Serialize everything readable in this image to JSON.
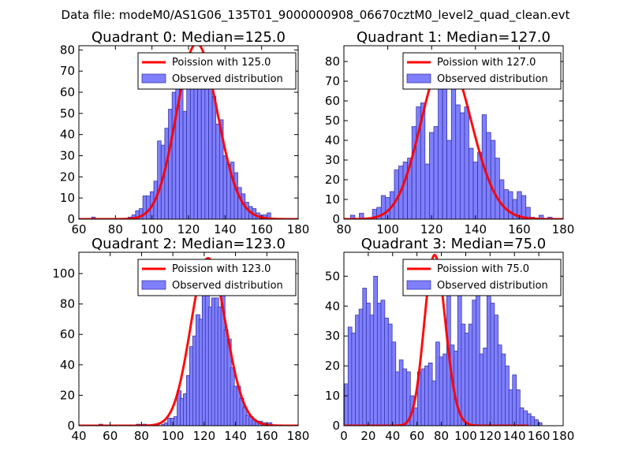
{
  "figure": {
    "suptitle": "Data file: modeM0/AS1G06_135T01_9000000908_06670cztM0_level2_quad_clean.evt"
  },
  "colors": {
    "bar_fill": "#7f7fff",
    "bar_edge": "#2b2b99",
    "poisson_line": "#ff0000"
  },
  "chart_data": [
    {
      "type": "bar",
      "title": "Quadrant 0: Median=125.0",
      "legend": {
        "line_label": "Poission with 125.0",
        "bar_label": "Observed distribution",
        "placement": "top-right"
      },
      "xlim": [
        60,
        180
      ],
      "ylim": [
        0,
        82
      ],
      "xticks": [
        60,
        80,
        100,
        120,
        140,
        160,
        180
      ],
      "yticks": [
        0,
        10,
        20,
        30,
        40,
        50,
        60,
        70,
        80
      ],
      "poisson_mean": 125.0,
      "poisson_peak": 83,
      "bin_width": 2,
      "bins": [
        [
          68,
          1
        ],
        [
          72,
          0
        ],
        [
          76,
          0
        ],
        [
          80,
          0
        ],
        [
          84,
          0
        ],
        [
          88,
          1
        ],
        [
          90,
          2
        ],
        [
          92,
          4
        ],
        [
          94,
          5
        ],
        [
          96,
          11
        ],
        [
          98,
          11
        ],
        [
          100,
          13
        ],
        [
          102,
          18
        ],
        [
          104,
          37
        ],
        [
          106,
          35
        ],
        [
          108,
          43
        ],
        [
          110,
          52
        ],
        [
          112,
          60
        ],
        [
          114,
          65
        ],
        [
          116,
          70
        ],
        [
          118,
          51
        ],
        [
          120,
          63
        ],
        [
          122,
          77
        ],
        [
          124,
          77
        ],
        [
          126,
          66
        ],
        [
          128,
          69
        ],
        [
          130,
          64
        ],
        [
          132,
          69
        ],
        [
          134,
          58
        ],
        [
          136,
          45
        ],
        [
          138,
          47
        ],
        [
          140,
          30
        ],
        [
          142,
          26
        ],
        [
          144,
          27
        ],
        [
          146,
          22
        ],
        [
          148,
          15
        ],
        [
          150,
          12
        ],
        [
          152,
          8
        ],
        [
          154,
          6
        ],
        [
          156,
          5
        ],
        [
          158,
          3
        ],
        [
          160,
          2
        ],
        [
          162,
          2
        ],
        [
          164,
          3
        ]
      ]
    },
    {
      "type": "bar",
      "title": "Quadrant 1: Median=127.0",
      "legend": {
        "line_label": "Poission with 127.0",
        "bar_label": "Observed distribution",
        "placement": "top-right"
      },
      "xlim": [
        80,
        180
      ],
      "ylim": [
        0,
        88
      ],
      "xticks": [
        80,
        100,
        120,
        140,
        160,
        180
      ],
      "yticks": [
        0,
        10,
        20,
        30,
        40,
        50,
        60,
        70,
        80
      ],
      "poisson_mean": 127.0,
      "poisson_peak": 83,
      "bin_width": 2,
      "bins": [
        [
          84,
          2
        ],
        [
          88,
          3
        ],
        [
          94,
          5
        ],
        [
          96,
          6
        ],
        [
          98,
          12
        ],
        [
          100,
          11
        ],
        [
          102,
          14
        ],
        [
          104,
          25
        ],
        [
          106,
          27
        ],
        [
          108,
          29
        ],
        [
          110,
          31
        ],
        [
          112,
          47
        ],
        [
          114,
          57
        ],
        [
          116,
          59
        ],
        [
          118,
          28
        ],
        [
          120,
          44
        ],
        [
          122,
          47
        ],
        [
          124,
          67
        ],
        [
          126,
          76
        ],
        [
          128,
          40
        ],
        [
          130,
          73
        ],
        [
          132,
          58
        ],
        [
          134,
          54
        ],
        [
          136,
          57
        ],
        [
          138,
          36
        ],
        [
          140,
          29
        ],
        [
          142,
          34
        ],
        [
          144,
          53
        ],
        [
          146,
          44
        ],
        [
          148,
          40
        ],
        [
          150,
          31
        ],
        [
          152,
          20
        ],
        [
          154,
          15
        ],
        [
          156,
          14
        ],
        [
          158,
          10
        ],
        [
          160,
          14
        ],
        [
          162,
          12
        ],
        [
          164,
          6
        ],
        [
          166,
          1
        ],
        [
          170,
          2
        ],
        [
          174,
          1
        ]
      ]
    },
    {
      "type": "bar",
      "title": "Quadrant 2: Median=123.0",
      "legend": {
        "line_label": "Poission with 123.0",
        "bar_label": "Observed distribution",
        "placement": "top-right"
      },
      "xlim": [
        40,
        180
      ],
      "ylim": [
        0,
        114
      ],
      "xticks": [
        40,
        60,
        80,
        100,
        120,
        140,
        160,
        180
      ],
      "yticks": [
        0,
        20,
        40,
        60,
        80,
        100
      ],
      "poisson_mean": 123.0,
      "poisson_peak": 110,
      "bin_width": 2.6,
      "bins": [
        [
          54,
          1
        ],
        [
          78,
          1
        ],
        [
          82,
          1
        ],
        [
          90,
          1
        ],
        [
          94,
          1
        ],
        [
          96,
          2
        ],
        [
          98,
          5
        ],
        [
          100,
          5
        ],
        [
          102,
          6
        ],
        [
          104,
          23
        ],
        [
          106,
          18
        ],
        [
          108,
          21
        ],
        [
          110,
          33
        ],
        [
          112,
          52
        ],
        [
          114,
          59
        ],
        [
          116,
          73
        ],
        [
          118,
          70
        ],
        [
          120,
          91
        ],
        [
          122,
          96
        ],
        [
          124,
          78
        ],
        [
          126,
          84
        ],
        [
          128,
          84
        ],
        [
          130,
          78
        ],
        [
          132,
          86
        ],
        [
          134,
          63
        ],
        [
          136,
          57
        ],
        [
          138,
          38
        ],
        [
          140,
          26
        ],
        [
          142,
          26
        ],
        [
          144,
          18
        ],
        [
          146,
          12
        ],
        [
          148,
          7
        ],
        [
          150,
          6
        ],
        [
          152,
          4
        ],
        [
          154,
          3
        ],
        [
          156,
          3
        ],
        [
          158,
          2
        ],
        [
          162,
          2
        ]
      ]
    },
    {
      "type": "bar",
      "title": "Quadrant 3: Median=75.0",
      "legend": {
        "line_label": "Poission with 75.0",
        "bar_label": "Observed distribution",
        "placement": "top-right"
      },
      "xlim": [
        0,
        180
      ],
      "ylim": [
        0,
        58
      ],
      "xticks": [
        0,
        20,
        40,
        60,
        80,
        100,
        120,
        140,
        160,
        180
      ],
      "yticks": [
        0,
        10,
        20,
        30,
        40,
        50
      ],
      "poisson_mean": 75.0,
      "poisson_peak": 57,
      "bin_width": 3.2,
      "bins": [
        [
          2,
          14
        ],
        [
          5,
          33
        ],
        [
          8,
          31
        ],
        [
          11,
          37
        ],
        [
          14,
          39
        ],
        [
          17,
          46
        ],
        [
          20,
          41
        ],
        [
          23,
          37
        ],
        [
          26,
          50
        ],
        [
          29,
          41
        ],
        [
          32,
          42
        ],
        [
          35,
          36
        ],
        [
          38,
          34
        ],
        [
          41,
          28
        ],
        [
          44,
          18
        ],
        [
          47,
          22
        ],
        [
          50,
          19
        ],
        [
          53,
          18
        ],
        [
          56,
          10
        ],
        [
          59,
          6
        ],
        [
          62,
          18
        ],
        [
          65,
          19
        ],
        [
          68,
          20
        ],
        [
          71,
          21
        ],
        [
          74,
          15
        ],
        [
          77,
          28
        ],
        [
          80,
          23
        ],
        [
          83,
          24
        ],
        [
          86,
          46
        ],
        [
          89,
          27
        ],
        [
          92,
          25
        ],
        [
          95,
          48
        ],
        [
          98,
          34
        ],
        [
          101,
          31
        ],
        [
          104,
          34
        ],
        [
          107,
          42
        ],
        [
          110,
          44
        ],
        [
          113,
          24
        ],
        [
          116,
          26
        ],
        [
          119,
          46
        ],
        [
          122,
          41
        ],
        [
          125,
          37
        ],
        [
          128,
          27
        ],
        [
          131,
          24
        ],
        [
          134,
          20
        ],
        [
          137,
          12
        ],
        [
          140,
          17
        ],
        [
          143,
          12
        ],
        [
          146,
          6
        ],
        [
          149,
          5
        ],
        [
          152,
          4
        ],
        [
          155,
          3
        ],
        [
          158,
          2
        ],
        [
          161,
          1
        ]
      ]
    }
  ]
}
